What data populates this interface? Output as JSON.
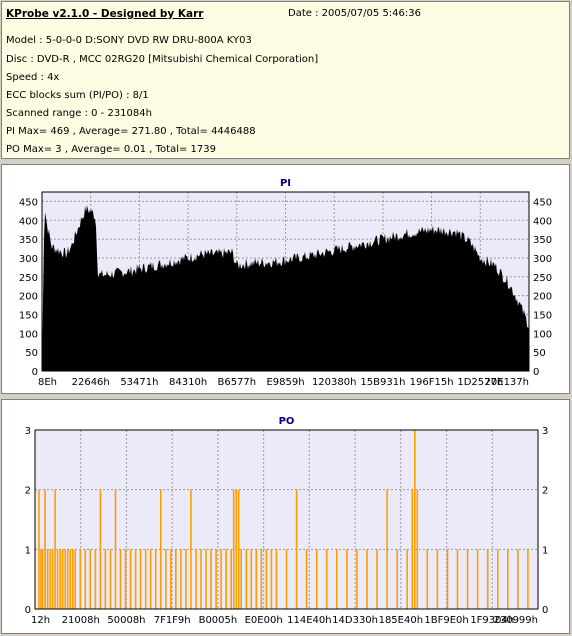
{
  "info": {
    "title": "KProbe v2.1.0 - Designed by Karr",
    "date": "Date : 2005/07/05 5:46:36",
    "model": "Model : 5-0-0-0 D:SONY    DVD RW DRU-800A  KY03",
    "disc": "Disc : DVD-R , MCC 02RG20  [Mitsubishi Chemical Corporation]",
    "speed": "Speed : 4x",
    "ecc": "ECC blocks sum (PI/PO) : 8/1",
    "range": "Scanned range : 0 - 231084h",
    "pi": "PI Max= 469 , Average= 271.80 , Total= 4446488",
    "po": "PO Max= 3 , Average= 0.01 , Total= 1739"
  },
  "chart_data": [
    {
      "type": "area",
      "title": "PI",
      "ylim": [
        0,
        475
      ],
      "yticks": [
        0,
        50,
        100,
        150,
        200,
        250,
        300,
        350,
        400,
        450
      ],
      "xticks": [
        "8Eh",
        "22646h",
        "53471h",
        "84310h",
        "B6577h",
        "E9859h",
        "120380h",
        "15B931h",
        "196F15h",
        "1D2577h",
        "20E137h"
      ],
      "color": "#000000",
      "grid": true,
      "profile_x": [
        0,
        0.005,
        0.01,
        0.02,
        0.05,
        0.06,
        0.08,
        0.09,
        0.1,
        0.11,
        0.115,
        0.12,
        0.13,
        0.18,
        0.25,
        0.33,
        0.36,
        0.39,
        0.4,
        0.42,
        0.48,
        0.55,
        0.6,
        0.65,
        0.7,
        0.75,
        0.8,
        0.85,
        0.88,
        0.9,
        0.93,
        0.96,
        0.98,
        1.0
      ],
      "profile_y": [
        0,
        440,
        390,
        330,
        310,
        330,
        400,
        430,
        425,
        410,
        260,
        255,
        255,
        265,
        285,
        310,
        310,
        315,
        280,
        285,
        290,
        305,
        320,
        335,
        350,
        365,
        375,
        370,
        340,
        300,
        280,
        230,
        180,
        120
      ]
    },
    {
      "type": "bar",
      "title": "PO",
      "ylim": [
        0,
        3
      ],
      "yticks": [
        0,
        1,
        2,
        3
      ],
      "xticks": [
        "12h",
        "21008h",
        "50008h",
        "7F1F9h",
        "B0005h",
        "E0E00h",
        "114E40h",
        "14D330h",
        "185E40h",
        "1BF9E0h",
        "1F9304h",
        "230999h"
      ],
      "color": "#ff9c00",
      "grid": true,
      "points_x": [
        0.008,
        0.012,
        0.015,
        0.02,
        0.025,
        0.03,
        0.035,
        0.04,
        0.045,
        0.05,
        0.055,
        0.06,
        0.065,
        0.07,
        0.075,
        0.08,
        0.09,
        0.1,
        0.11,
        0.12,
        0.13,
        0.14,
        0.15,
        0.16,
        0.17,
        0.18,
        0.19,
        0.2,
        0.21,
        0.22,
        0.23,
        0.24,
        0.25,
        0.26,
        0.27,
        0.28,
        0.29,
        0.3,
        0.31,
        0.32,
        0.33,
        0.34,
        0.35,
        0.36,
        0.37,
        0.38,
        0.39,
        0.395,
        0.4,
        0.405,
        0.41,
        0.42,
        0.43,
        0.44,
        0.45,
        0.46,
        0.47,
        0.48,
        0.5,
        0.52,
        0.54,
        0.56,
        0.58,
        0.6,
        0.62,
        0.64,
        0.66,
        0.68,
        0.7,
        0.72,
        0.74,
        0.75,
        0.755,
        0.76,
        0.78,
        0.8,
        0.82,
        0.84,
        0.86,
        0.88,
        0.9,
        0.92,
        0.94,
        0.96,
        0.98
      ],
      "points_y": [
        2,
        1,
        1,
        2,
        1,
        1,
        1,
        2,
        1,
        1,
        1,
        1,
        1,
        1,
        1,
        1,
        1,
        1,
        1,
        1,
        2,
        1,
        1,
        2,
        1,
        1,
        1,
        1,
        1,
        1,
        1,
        1,
        2,
        1,
        1,
        1,
        1,
        1,
        2,
        1,
        1,
        1,
        1,
        1,
        1,
        1,
        1,
        2,
        2,
        2,
        1,
        1,
        1,
        1,
        1,
        1,
        1,
        1,
        1,
        2,
        1,
        1,
        1,
        1,
        1,
        1,
        1,
        1,
        2,
        1,
        1,
        2,
        3,
        2,
        1,
        1,
        1,
        1,
        1,
        1,
        1,
        1,
        1,
        1,
        1
      ]
    }
  ]
}
